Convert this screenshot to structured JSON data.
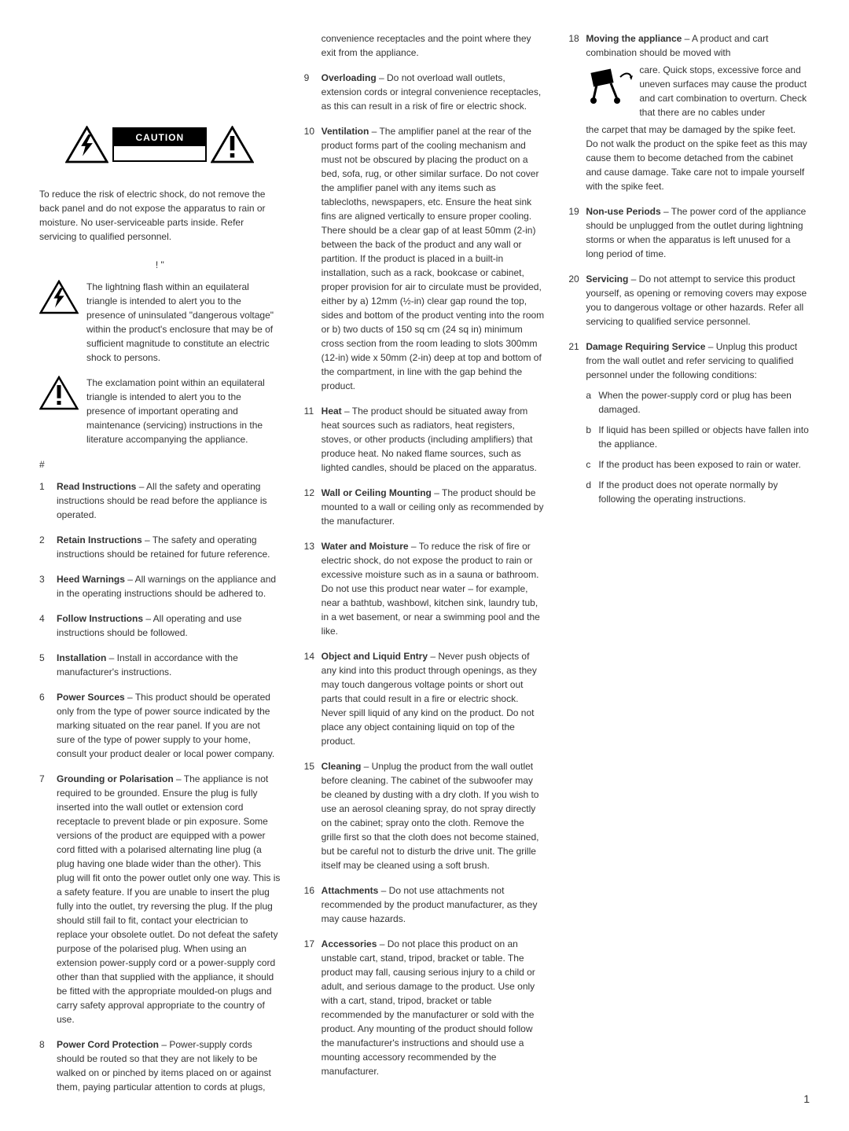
{
  "caution_label": "CAUTION",
  "intro": "To reduce the risk of electric shock, do not remove the back panel and do not expose the apparatus to rain or moisture. No user-serviceable parts inside. Refer servicing to qualified personnel.",
  "symbol_heading": "! \"",
  "lightning_desc": "The lightning flash within an equilateral triangle is intended to alert you to the presence of uninsulated \"dangerous voltage\" within the product's enclosure that may be of sufficient magnitude to constitute an electric shock to persons.",
  "exclamation_desc": "The exclamation point within an equilateral triangle is intended to alert you to the presence of important operating and maintenance (servicing) instructions in the literature accompanying the appliance.",
  "hash": "#",
  "items": [
    {
      "n": "1",
      "h": "Read Instructions",
      "t": " – All the safety and operating instructions should be read before the appliance is operated."
    },
    {
      "n": "2",
      "h": "Retain Instructions",
      "t": " – The safety and operating instructions should be retained for future reference."
    },
    {
      "n": "3",
      "h": "Heed Warnings",
      "t": " – All warnings on the appliance and in the operating instructions should be adhered to."
    },
    {
      "n": "4",
      "h": "Follow Instructions",
      "t": " – All operating and use instructions should be followed."
    },
    {
      "n": "5",
      "h": "Installation",
      "t": " – Install in accordance with the manufacturer's instructions."
    },
    {
      "n": "6",
      "h": "Power Sources",
      "t": " – This product should be operated only from the type of power source indicated by the marking situated on the rear panel. If you are not sure of the type of power supply to your home, consult your product dealer or local power company."
    },
    {
      "n": "7",
      "h": "Grounding or Polarisation",
      "t": " – The appliance is not required to be grounded. Ensure the plug is fully inserted into the wall outlet or extension cord receptacle to prevent blade or pin exposure. Some versions of the product are equipped with a power cord fitted with a polarised alternating line plug (a plug having one blade wider than the other). This plug will fit onto the power outlet only one way. This is a safety feature. If you are unable to insert the plug fully into the outlet, try reversing the plug. If the plug should still fail to fit, contact your electrician to replace your obsolete outlet. Do not defeat the safety purpose of the polarised plug. When using an extension power-supply cord or a power-supply cord other than that supplied with the appliance, it should be fitted with the appropriate moulded-on plugs and carry safety approval appropriate to the country of use."
    },
    {
      "n": "8",
      "h": "Power Cord Protection",
      "t": " – Power-supply cords should be routed so that they are not likely to be walked on or pinched by items placed on or against them, paying particular attention to cords at plugs, convenience receptacles and the point where they exit from the appliance."
    },
    {
      "n": "9",
      "h": "Overloading",
      "t": " – Do not overload wall outlets, extension cords or integral convenience receptacles, as this can result in a risk of fire or electric shock."
    },
    {
      "n": "10",
      "h": "Ventilation",
      "t": " – The amplifier panel at the rear of the product forms part of the cooling mechanism and must not be obscured by placing the product on a bed, sofa, rug, or other similar surface. Do not cover the amplifier panel with any items such as tablecloths, newspapers, etc. Ensure the heat sink fins are aligned vertically to ensure proper cooling. There should be a clear gap of at least 50mm (2-in) between the back of the product and any wall or partition. If the product is placed in a built-in installation, such as a rack, bookcase or cabinet, proper provision for air to circulate must be provided, either by a) 12mm (½-in) clear gap round the top, sides and bottom of the product venting into the room or b) two ducts of 150 sq cm (24 sq in) minimum cross section from the room leading to slots 300mm (12-in) wide x 50mm (2-in) deep at top and bottom of the compartment, in line with the gap behind the product."
    },
    {
      "n": "11",
      "h": "Heat",
      "t": " – The product should be situated away from heat sources such as radiators, heat registers, stoves, or other products (including amplifiers) that produce heat. No naked flame sources, such as lighted candles, should be placed on the apparatus."
    },
    {
      "n": "12",
      "h": "Wall or Ceiling Mounting",
      "t": " – The product should be mounted to a wall or ceiling only as recommended by the manufacturer."
    },
    {
      "n": "13",
      "h": "Water and Moisture",
      "t": " – To reduce the risk of fire or electric shock, do not expose the product to rain or excessive moisture such as in a sauna or bathroom. Do not use this product near water – for example, near a bathtub, washbowl, kitchen sink, laundry tub, in a wet basement, or near a swimming pool and the like."
    },
    {
      "n": "14",
      "h": "Object and Liquid Entry",
      "t": " – Never push objects of any kind into this product through openings, as they may touch dangerous voltage points or short out parts that could result in a fire or electric shock. Never spill liquid of any kind on the product. Do not place any object containing liquid on top of the product."
    },
    {
      "n": "15",
      "h": "Cleaning",
      "t": " – Unplug the product from the wall outlet before cleaning. The cabinet of the subwoofer may be cleaned by dusting with a dry cloth. If you wish to use an aerosol cleaning spray, do not spray directly on the cabinet; spray onto the cloth. Remove the grille first so that the cloth does not become stained, but be careful not to disturb the drive unit. The grille itself may be cleaned using a soft brush."
    },
    {
      "n": "16",
      "h": "Attachments",
      "t": " – Do not use attachments not recommended by the product manufacturer, as they may cause hazards."
    },
    {
      "n": "17",
      "h": "Accessories",
      "t": " – Do not place this product on an unstable cart, stand, tripod, bracket or table. The product may fall, causing serious injury to a child or adult, and serious damage to the product. Use only with a cart, stand, tripod, bracket or table recommended by the manufacturer or sold with the product. Any mounting of the product should follow the manufacturer's instructions and should use a mounting accessory recommended by the manufacturer."
    },
    {
      "n": "18",
      "h": "Moving the appliance",
      "t": " – A product and cart combination should be moved with ",
      "moving_pre": "care. Quick stops, excessive force and uneven surfaces may cause the product and cart combination to overturn. Check that there are no cables under",
      "moving_post": "the carpet that may be damaged by the spike feet. Do not walk the product on the spike feet as this may cause them to become detached from the cabinet and cause damage. Take care not to impale yourself with the spike feet."
    },
    {
      "n": "19",
      "h": "Non-use Periods",
      "t": " – The power cord of the appliance should be unplugged from the outlet during lightning storms or when the apparatus is left unused for a long period of time."
    },
    {
      "n": "20",
      "h": "Servicing",
      "t": " – Do not attempt to service this product yourself, as opening or removing covers may expose you to dangerous voltage or other hazards. Refer all servicing to qualified service personnel."
    },
    {
      "n": "21",
      "h": "Damage Requiring Service",
      "t": " – Unplug this product from the wall outlet and refer servicing to qualified personnel under the following conditions:",
      "subs": [
        {
          "l": "a",
          "t": "When the power-supply cord or plug has been damaged."
        },
        {
          "l": "b",
          "t": "If liquid has been spilled or objects have fallen into the appliance."
        },
        {
          "l": "c",
          "t": "If the product has been exposed to rain or water."
        },
        {
          "l": "d",
          "t": "If the product does not operate normally by following the operating instructions."
        }
      ]
    }
  ],
  "page_number": "1"
}
